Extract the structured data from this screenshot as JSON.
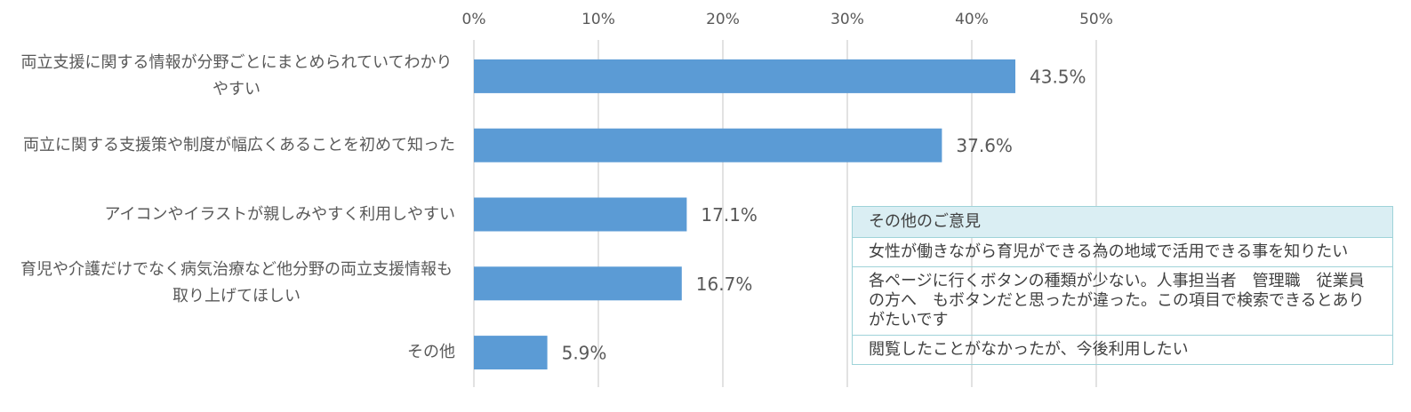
{
  "chart_data": {
    "type": "bar",
    "orientation": "horizontal",
    "categories": [
      "両立支援に関する情報が分野ごとにまとめられていてわかりやすい",
      "両立に関する支援策や制度が幅広くあることを初めて知った",
      "アイコンやイラストが親しみやすく利用しやすい",
      "育児や介護だけでなく病気治療など他分野の両立支援情報も取り上げてほしい",
      "その他"
    ],
    "values": [
      43.5,
      37.6,
      17.1,
      16.7,
      5.9
    ],
    "value_labels": [
      "43.5%",
      "37.6%",
      "17.1%",
      "16.7%",
      "5.9%"
    ],
    "color": "#5b9bd5",
    "xlim": [
      0,
      50
    ],
    "xticks": [
      {
        "value": 0,
        "label": "0%"
      },
      {
        "value": 10,
        "label": "10%"
      },
      {
        "value": 20,
        "label": "20%"
      },
      {
        "value": 30,
        "label": "30%"
      },
      {
        "value": 40,
        "label": "40%"
      },
      {
        "value": 50,
        "label": "50%"
      }
    ],
    "grid": true
  },
  "table": {
    "header": "その他のご意見",
    "rows": [
      "女性が働きながら育児ができる為の地域で活用できる事を知りたい",
      "各ページに行くボタンの種類が少ない。人事担当者　管理職　従業員の方へ　もボタンだと思ったが違った。この項目で検索できるとありがたいです",
      "閲覧したことがなかったが、今後利用したい"
    ]
  }
}
